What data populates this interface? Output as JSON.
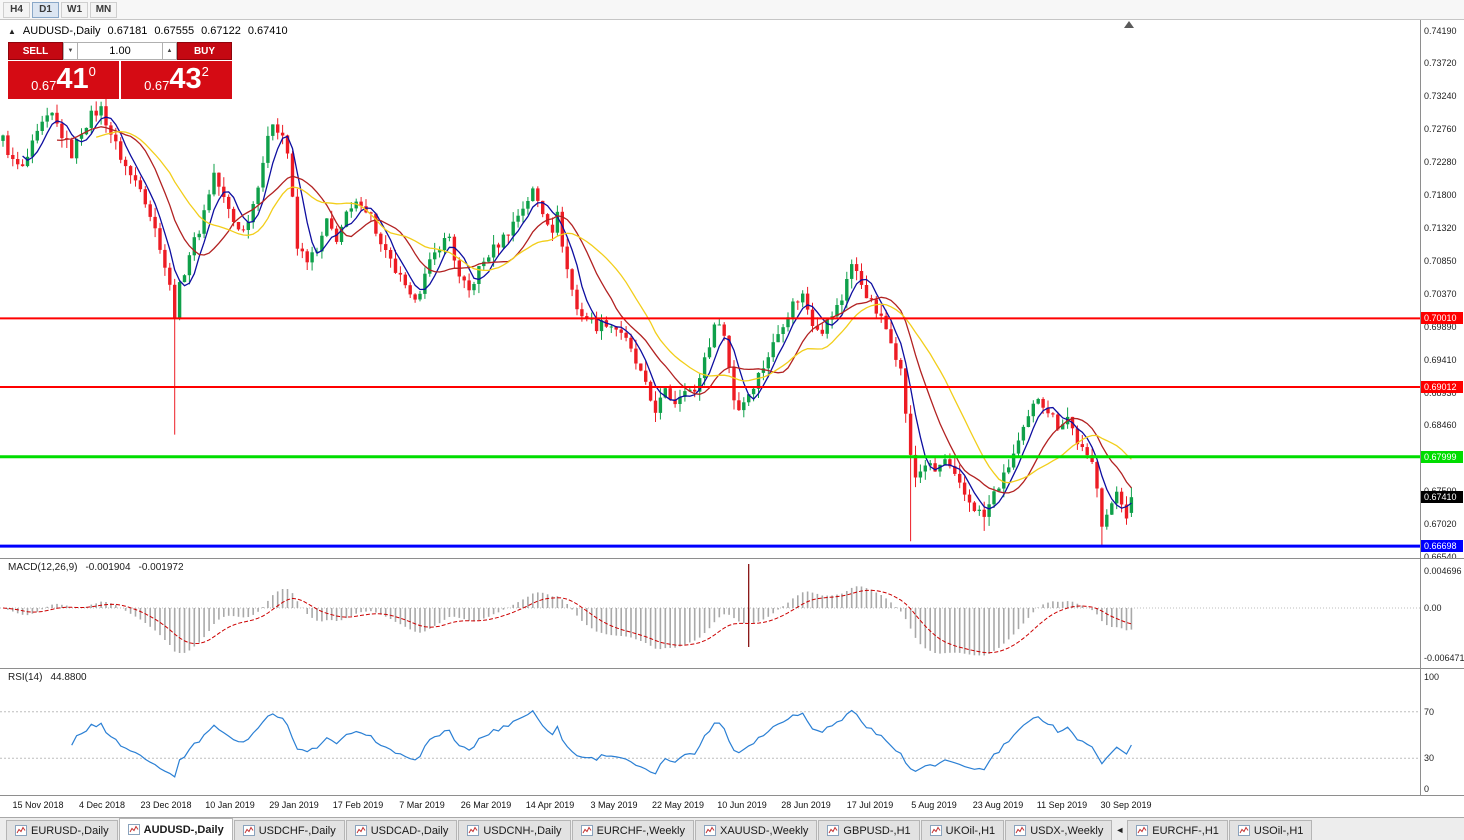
{
  "toolbar": {
    "timeframes": [
      {
        "label": "H4",
        "active": false
      },
      {
        "label": "D1",
        "active": true
      },
      {
        "label": "W1",
        "active": false
      },
      {
        "label": "MN",
        "active": false
      }
    ]
  },
  "chart_header": {
    "collapse_glyph": "▲",
    "symbol": "AUDUSD-,Daily",
    "open": "0.67181",
    "high": "0.67555",
    "low": "0.67122",
    "close": "0.67410"
  },
  "one_click": {
    "sell_label": "SELL",
    "buy_label": "BUY",
    "volume": "1.00",
    "spin_down_glyph": "▼",
    "spin_up_glyph": "▲",
    "bid": {
      "prefix": "0.67",
      "big": "41",
      "sup": "0"
    },
    "ask": {
      "prefix": "0.67",
      "big": "43",
      "sup": "2"
    }
  },
  "chart_data": {
    "type": "candlestick",
    "title": "AUDUSD-,Daily",
    "current_bar": {
      "open": 0.67181,
      "high": 0.67555,
      "low": 0.67122,
      "close": 0.6741
    },
    "y_range": [
      0.6654,
      0.7419
    ],
    "bars": 231,
    "price_path": [
      [
        0,
        0.7262
      ],
      [
        2,
        0.7228
      ],
      [
        4,
        0.7218
      ],
      [
        6,
        0.7252
      ],
      [
        8,
        0.7282
      ],
      [
        10,
        0.7296
      ],
      [
        12,
        0.7268
      ],
      [
        14,
        0.724
      ],
      [
        16,
        0.7274
      ],
      [
        18,
        0.7296
      ],
      [
        20,
        0.7306
      ],
      [
        22,
        0.727
      ],
      [
        24,
        0.7236
      ],
      [
        26,
        0.7208
      ],
      [
        28,
        0.7196
      ],
      [
        30,
        0.7152
      ],
      [
        32,
        0.7108
      ],
      [
        34,
        0.7046
      ],
      [
        35,
        0.7008
      ],
      [
        36,
        0.7046
      ],
      [
        38,
        0.7096
      ],
      [
        40,
        0.713
      ],
      [
        43,
        0.7212
      ],
      [
        45,
        0.7174
      ],
      [
        47,
        0.7142
      ],
      [
        49,
        0.7128
      ],
      [
        51,
        0.7168
      ],
      [
        53,
        0.723
      ],
      [
        55,
        0.7288
      ],
      [
        57,
        0.7268
      ],
      [
        58,
        0.7242
      ],
      [
        60,
        0.7102
      ],
      [
        62,
        0.7088
      ],
      [
        64,
        0.7096
      ],
      [
        66,
        0.714
      ],
      [
        68,
        0.7118
      ],
      [
        70,
        0.715
      ],
      [
        73,
        0.7172
      ],
      [
        75,
        0.715
      ],
      [
        77,
        0.7106
      ],
      [
        79,
        0.7082
      ],
      [
        81,
        0.7058
      ],
      [
        83,
        0.7028
      ],
      [
        85,
        0.7044
      ],
      [
        87,
        0.708
      ],
      [
        89,
        0.7108
      ],
      [
        91,
        0.712
      ],
      [
        93,
        0.7058
      ],
      [
        95,
        0.704
      ],
      [
        97,
        0.7072
      ],
      [
        99,
        0.7094
      ],
      [
        101,
        0.711
      ],
      [
        103,
        0.7128
      ],
      [
        105,
        0.7152
      ],
      [
        108,
        0.7186
      ],
      [
        110,
        0.7156
      ],
      [
        112,
        0.7132
      ],
      [
        113,
        0.715
      ],
      [
        115,
        0.7072
      ],
      [
        117,
        0.7014
      ],
      [
        119,
        0.7002
      ],
      [
        121,
        0.699
      ],
      [
        123,
        0.6996
      ],
      [
        126,
        0.6982
      ],
      [
        128,
        0.6952
      ],
      [
        130,
        0.692
      ],
      [
        132,
        0.6882
      ],
      [
        133,
        0.6869
      ],
      [
        135,
        0.6893
      ],
      [
        137,
        0.688
      ],
      [
        139,
        0.6903
      ],
      [
        141,
        0.689
      ],
      [
        143,
        0.6944
      ],
      [
        145,
        0.6986
      ],
      [
        146,
        0.7
      ],
      [
        147,
        0.6975
      ],
      [
        149,
        0.6885
      ],
      [
        150,
        0.687
      ],
      [
        152,
        0.6893
      ],
      [
        155,
        0.6932
      ],
      [
        157,
        0.6963
      ],
      [
        159,
        0.6996
      ],
      [
        161,
        0.7022
      ],
      [
        163,
        0.7035
      ],
      [
        165,
        0.6996
      ],
      [
        167,
        0.6985
      ],
      [
        169,
        0.7006
      ],
      [
        171,
        0.7028
      ],
      [
        172,
        0.7062
      ],
      [
        173,
        0.708
      ],
      [
        175,
        0.7052
      ],
      [
        177,
        0.7022
      ],
      [
        179,
        0.6999
      ],
      [
        181,
        0.6972
      ],
      [
        183,
        0.6925
      ],
      [
        184,
        0.6865
      ],
      [
        185,
        0.6798
      ],
      [
        186,
        0.677
      ],
      [
        188,
        0.679
      ],
      [
        190,
        0.6778
      ],
      [
        192,
        0.6795
      ],
      [
        194,
        0.6768
      ],
      [
        196,
        0.6744
      ],
      [
        198,
        0.6726
      ],
      [
        200,
        0.6712
      ],
      [
        202,
        0.6746
      ],
      [
        204,
        0.677
      ],
      [
        206,
        0.6804
      ],
      [
        208,
        0.6836
      ],
      [
        210,
        0.6872
      ],
      [
        211,
        0.6888
      ],
      [
        213,
        0.6868
      ],
      [
        215,
        0.6846
      ],
      [
        217,
        0.6858
      ],
      [
        219,
        0.6822
      ],
      [
        221,
        0.6796
      ],
      [
        222,
        0.679
      ],
      [
        223,
        0.676
      ],
      [
        224,
        0.6705
      ],
      [
        226,
        0.6726
      ],
      [
        227,
        0.675
      ],
      [
        228,
        0.6736
      ],
      [
        229,
        0.6716
      ],
      [
        230,
        0.6741
      ]
    ],
    "wick_overrides": [
      {
        "i": 35,
        "low": 0.6832
      },
      {
        "i": 133,
        "low": 0.6861
      },
      {
        "i": 185,
        "low": 0.6677
      },
      {
        "i": 200,
        "low": 0.6692
      },
      {
        "i": 224,
        "low": 0.6671
      }
    ],
    "moving_averages": [
      {
        "period": 5,
        "color": "#0e0ea0"
      },
      {
        "period": 12,
        "color": "#b22222"
      },
      {
        "period": 20,
        "color": "#f2ce1b"
      }
    ],
    "hlines": [
      {
        "value": 0.7001,
        "label": "0.70010",
        "color": "#ff0000",
        "thickness": 2
      },
      {
        "value": 0.69012,
        "label": "0.69012",
        "color": "#ff0000",
        "thickness": 2
      },
      {
        "value": 0.67999,
        "label": "0.67999",
        "color": "#00dd00",
        "thickness": 3
      },
      {
        "value": 0.66698,
        "label": "0.66698",
        "color": "#0000ff",
        "thickness": 3
      }
    ],
    "price_tag": {
      "label": "0.67410",
      "value": 0.6741,
      "color": "#000000"
    },
    "price_axis_labels": [
      "0.74190",
      "0.73720",
      "0.73240",
      "0.72760",
      "0.72280",
      "0.71800",
      "0.71320",
      "0.70850",
      "0.70370",
      "0.69890",
      "0.69410",
      "0.68930",
      "0.68460",
      "0.67980",
      "0.67500",
      "0.67020",
      "0.66540"
    ],
    "x_labels": [
      "15 Nov 2018",
      "4 Dec 2018",
      "23 Dec 2018",
      "10 Jan 2019",
      "29 Jan 2019",
      "17 Feb 2019",
      "7 Mar 2019",
      "26 Mar 2019",
      "14 Apr 2019",
      "3 May 2019",
      "22 May 2019",
      "10 Jun 2019",
      "28 Jun 2019",
      "17 Jul 2019",
      "5 Aug 2019",
      "23 Aug 2019",
      "11 Sep 2019",
      "30 Sep 2019"
    ],
    "macd": {
      "label": "MACD(12,26,9)",
      "value_main": "-0.001904",
      "value_signal": "-0.001972",
      "axis_labels": [
        "0.004696",
        "0.00",
        "-0.006471"
      ],
      "fast": 12,
      "slow": 26,
      "signal": 9,
      "hist_color": "#a9a9a9",
      "signal_color": "#cc0000",
      "spike_bar": 152
    },
    "rsi": {
      "label": "RSI(14)",
      "value": "44.8800",
      "period": 14,
      "axis_labels": [
        "100",
        "70",
        "30",
        "0"
      ],
      "levels": [
        70,
        30
      ],
      "color": "#2a7fd4"
    }
  },
  "colors": {
    "bull": "#0fa04a",
    "bear": "#ed1c24"
  },
  "tabs": [
    {
      "label": "EURUSD-,Daily",
      "active": false
    },
    {
      "label": "AUDUSD-,Daily",
      "active": true
    },
    {
      "label": "USDCHF-,Daily",
      "active": false
    },
    {
      "label": "USDCAD-,Daily",
      "active": false
    },
    {
      "label": "USDCNH-,Daily",
      "active": false
    },
    {
      "label": "EURCHF-,Weekly",
      "active": false
    },
    {
      "label": "XAUUSD-,Weekly",
      "active": false
    },
    {
      "label": "GBPUSD-,H1",
      "active": false
    },
    {
      "label": "UKOil-,H1",
      "active": false
    },
    {
      "label": "USDX-,Weekly",
      "active": false
    },
    {
      "label": "EURCHF-,H1",
      "active": false,
      "scroll_marker_before": true
    },
    {
      "label": "USOil-,H1",
      "active": false
    }
  ]
}
